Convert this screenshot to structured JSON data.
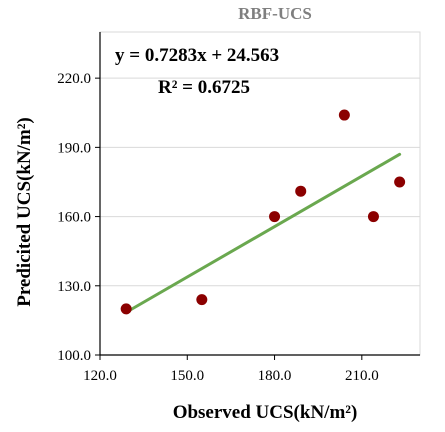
{
  "chart_data": {
    "type": "scatter",
    "title": "RBF-UCS",
    "xlabel": "Observed UCS(kN/m²)",
    "ylabel": "Predicited UCS(kN/m²)",
    "xlim": [
      120,
      230
    ],
    "ylim": [
      100,
      240
    ],
    "x_ticks": [
      120,
      150,
      180,
      210
    ],
    "y_ticks": [
      100,
      130,
      160,
      190,
      220
    ],
    "x_tick_labels": [
      "120.0",
      "150.0",
      "180.0",
      "210.0"
    ],
    "y_tick_labels": [
      "100.0",
      "130.0",
      "160.0",
      "190.0",
      "220.0"
    ],
    "grid": "horizontal",
    "legend": "none",
    "points": [
      {
        "x": 129,
        "y": 120
      },
      {
        "x": 155,
        "y": 124
      },
      {
        "x": 180,
        "y": 160
      },
      {
        "x": 189,
        "y": 171
      },
      {
        "x": 204,
        "y": 204
      },
      {
        "x": 214,
        "y": 160
      },
      {
        "x": 223,
        "y": 175
      }
    ],
    "trendline": {
      "slope": 0.7283,
      "intercept": 24.563,
      "x_range": [
        129,
        223
      ],
      "equation": "y = 0.7283x + 24.563",
      "r_squared": "R² = 0.6725"
    },
    "colors": {
      "point": "#8b0000",
      "trendline": "#6aa84f",
      "grid": "#d9d9d9",
      "axis": "#000000",
      "title": "#7f7f7f"
    }
  }
}
